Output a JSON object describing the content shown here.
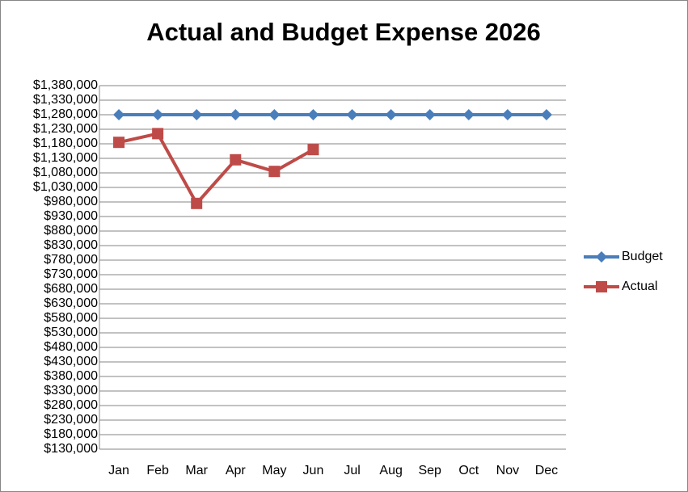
{
  "chart_data": {
    "type": "line",
    "title": "Actual and Budget Expense 2026",
    "categories": [
      "Jan",
      "Feb",
      "Mar",
      "Apr",
      "May",
      "Jun",
      "Jul",
      "Aug",
      "Sep",
      "Oct",
      "Nov",
      "Dec"
    ],
    "series": [
      {
        "name": "Budget",
        "color": "#4a7ebb",
        "marker": "diamond",
        "values": [
          1280000,
          1280000,
          1280000,
          1280000,
          1280000,
          1280000,
          1280000,
          1280000,
          1280000,
          1280000,
          1280000,
          1280000
        ]
      },
      {
        "name": "Actual",
        "color": "#be4b48",
        "marker": "square",
        "values": [
          1185000,
          1215000,
          975000,
          1125000,
          1085000,
          1160000,
          null,
          null,
          null,
          null,
          null,
          null
        ]
      }
    ],
    "ylim": [
      130000,
      1380000
    ],
    "yticks": [
      {
        "value": 130000,
        "label": "$130,000"
      },
      {
        "value": 180000,
        "label": "$180,000"
      },
      {
        "value": 230000,
        "label": "$230,000"
      },
      {
        "value": 280000,
        "label": "$280,000"
      },
      {
        "value": 330000,
        "label": "$330,000"
      },
      {
        "value": 380000,
        "label": "$380,000"
      },
      {
        "value": 430000,
        "label": "$430,000"
      },
      {
        "value": 480000,
        "label": "$480,000"
      },
      {
        "value": 530000,
        "label": "$530,000"
      },
      {
        "value": 580000,
        "label": "$580,000"
      },
      {
        "value": 630000,
        "label": "$630,000"
      },
      {
        "value": 680000,
        "label": "$680,000"
      },
      {
        "value": 730000,
        "label": "$730,000"
      },
      {
        "value": 780000,
        "label": "$780,000"
      },
      {
        "value": 830000,
        "label": "$830,000"
      },
      {
        "value": 880000,
        "label": "$880,000"
      },
      {
        "value": 930000,
        "label": "$930,000"
      },
      {
        "value": 980000,
        "label": "$980,000"
      },
      {
        "value": 1030000,
        "label": "$1,030,000"
      },
      {
        "value": 1080000,
        "label": "$1,080,000"
      },
      {
        "value": 1130000,
        "label": "$1,130,000"
      },
      {
        "value": 1180000,
        "label": "$1,180,000"
      },
      {
        "value": 1230000,
        "label": "$1,230,000"
      },
      {
        "value": 1280000,
        "label": "$1,280,000"
      },
      {
        "value": 1330000,
        "label": "$1,330,000"
      },
      {
        "value": 1380000,
        "label": "$1,380,000"
      }
    ],
    "grid": true,
    "legend": "right"
  }
}
